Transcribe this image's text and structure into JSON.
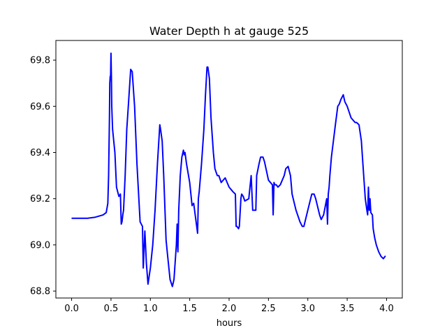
{
  "chart_data": {
    "type": "line",
    "title": "Water Depth h at gauge 525",
    "xlabel": "hours",
    "ylabel": "",
    "xlim": [
      -0.2,
      4.2
    ],
    "ylim": [
      68.77,
      69.885
    ],
    "x_ticks": [
      0.0,
      0.5,
      1.0,
      1.5,
      2.0,
      2.5,
      3.0,
      3.5,
      4.0
    ],
    "x_tick_labels": [
      "0.0",
      "0.5",
      "1.0",
      "1.5",
      "2.0",
      "2.5",
      "3.0",
      "3.5",
      "4.0"
    ],
    "y_ticks": [
      68.8,
      69.0,
      69.2,
      69.4,
      69.6,
      69.8
    ],
    "y_tick_labels": [
      "68.8",
      "69.0",
      "69.2",
      "69.4",
      "69.6",
      "69.8"
    ],
    "grid": false,
    "legend": "none",
    "series": [
      {
        "color": "#0000ff",
        "x": [
          0.0,
          0.2,
          0.3,
          0.4,
          0.44,
          0.46,
          0.47,
          0.48,
          0.485,
          0.49,
          0.495,
          0.5,
          0.505,
          0.51,
          0.52,
          0.55,
          0.57,
          0.6,
          0.62,
          0.63,
          0.64,
          0.65,
          0.66,
          0.68,
          0.7,
          0.72,
          0.75,
          0.77,
          0.8,
          0.83,
          0.87,
          0.9,
          0.91,
          0.93,
          0.95,
          0.97,
          1.0,
          1.03,
          1.06,
          1.09,
          1.12,
          1.13,
          1.15,
          1.17,
          1.2,
          1.22,
          1.25,
          1.28,
          1.3,
          1.33,
          1.34,
          1.35,
          1.36,
          1.38,
          1.4,
          1.42,
          1.43,
          1.44,
          1.46,
          1.5,
          1.53,
          1.55,
          1.6,
          1.61,
          1.62,
          1.65,
          1.68,
          1.7,
          1.72,
          1.73,
          1.75,
          1.77,
          1.8,
          1.82,
          1.85,
          1.87,
          1.9,
          1.95,
          2.0,
          2.05,
          2.08,
          2.09,
          2.1,
          2.12,
          2.13,
          2.15,
          2.16,
          2.18,
          2.2,
          2.25,
          2.28,
          2.3,
          2.31,
          2.33,
          2.34,
          2.35,
          2.38,
          2.4,
          2.43,
          2.45,
          2.5,
          2.55,
          2.56,
          2.57,
          2.58,
          2.6,
          2.62,
          2.65,
          2.7,
          2.72,
          2.75,
          2.78,
          2.8,
          2.85,
          2.9,
          2.93,
          2.95,
          3.0,
          3.05,
          3.08,
          3.1,
          3.15,
          3.17,
          3.2,
          3.24,
          3.25,
          3.26,
          3.27,
          3.28,
          3.3,
          3.35,
          3.38,
          3.4,
          3.42,
          3.45,
          3.47,
          3.5,
          3.55,
          3.6,
          3.62,
          3.65,
          3.68,
          3.7,
          3.73,
          3.75,
          3.76,
          3.77,
          3.78,
          3.79,
          3.8,
          3.82,
          3.83,
          3.85,
          3.87,
          3.9,
          3.93,
          3.96,
          3.98,
          3.99
        ],
        "y": [
          69.115,
          69.115,
          69.12,
          69.13,
          69.14,
          69.18,
          69.3,
          69.55,
          69.7,
          69.73,
          69.72,
          69.83,
          69.73,
          69.6,
          69.5,
          69.4,
          69.25,
          69.21,
          69.22,
          69.09,
          69.1,
          69.13,
          69.15,
          69.3,
          69.5,
          69.6,
          69.76,
          69.75,
          69.6,
          69.35,
          69.1,
          69.08,
          68.9,
          69.06,
          68.92,
          68.83,
          68.9,
          69.0,
          69.15,
          69.35,
          69.52,
          69.5,
          69.45,
          69.3,
          69.02,
          68.95,
          68.85,
          68.82,
          68.85,
          69.0,
          69.09,
          68.97,
          69.15,
          69.3,
          69.38,
          69.41,
          69.39,
          69.4,
          69.35,
          69.27,
          69.17,
          69.18,
          69.05,
          69.2,
          69.23,
          69.35,
          69.5,
          69.65,
          69.77,
          69.77,
          69.72,
          69.55,
          69.4,
          69.33,
          69.3,
          69.3,
          69.27,
          69.29,
          69.25,
          69.23,
          69.22,
          69.08,
          69.08,
          69.07,
          69.08,
          69.2,
          69.22,
          69.21,
          69.19,
          69.2,
          69.3,
          69.15,
          69.15,
          69.15,
          69.15,
          69.3,
          69.35,
          69.38,
          69.38,
          69.36,
          69.28,
          69.26,
          69.13,
          69.27,
          69.26,
          69.26,
          69.25,
          69.26,
          69.3,
          69.33,
          69.34,
          69.3,
          69.22,
          69.15,
          69.1,
          69.08,
          69.08,
          69.15,
          69.22,
          69.22,
          69.2,
          69.13,
          69.11,
          69.13,
          69.2,
          69.09,
          69.22,
          69.25,
          69.3,
          69.38,
          69.52,
          69.6,
          69.61,
          69.63,
          69.65,
          69.62,
          69.6,
          69.55,
          69.53,
          69.53,
          69.52,
          69.45,
          69.35,
          69.2,
          69.15,
          69.13,
          69.25,
          69.15,
          69.2,
          69.14,
          69.13,
          69.07,
          69.03,
          69.0,
          68.97,
          68.95,
          68.94,
          68.95,
          68.95
        ]
      }
    ]
  }
}
